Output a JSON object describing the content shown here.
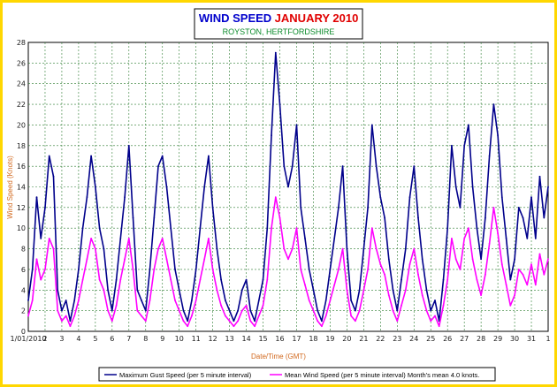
{
  "chart_data": {
    "type": "line",
    "title": "WIND SPEED",
    "title_date": "JANUARY 2010",
    "subtitle": "ROYSTON, HERTFORDSHIRE",
    "xlabel": "Date/Time (GMT)",
    "ylabel": "Wind Speed (Knots)",
    "ylim": [
      0,
      28
    ],
    "yticks": [
      0,
      2,
      4,
      6,
      8,
      10,
      12,
      14,
      16,
      18,
      20,
      22,
      24,
      26,
      28
    ],
    "xlim": [
      1,
      32
    ],
    "x_unit": "day of month (January 2010 → 1 February)",
    "xticks": [
      1,
      2,
      3,
      4,
      5,
      6,
      7,
      8,
      9,
      10,
      11,
      12,
      13,
      14,
      15,
      16,
      17,
      18,
      19,
      20,
      21,
      22,
      23,
      24,
      25,
      26,
      27,
      28,
      29,
      30,
      31,
      32
    ],
    "xtick_labels": [
      "1/01/2010",
      "2",
      "3",
      "4",
      "5",
      "6",
      "7",
      "8",
      "9",
      "10",
      "11",
      "12",
      "13",
      "14",
      "15",
      "16",
      "17",
      "18",
      "19",
      "20",
      "21",
      "22",
      "23",
      "24",
      "25",
      "26",
      "27",
      "28",
      "29",
      "30",
      "31",
      "1"
    ],
    "grid": true,
    "legend_position": "bottom",
    "series": [
      {
        "name": "Maximum Gust Speed (per 5 minute interval)",
        "color": "#00008b",
        "x": [
          1.0,
          1.25,
          1.5,
          1.75,
          2.0,
          2.25,
          2.5,
          2.75,
          3.0,
          3.25,
          3.5,
          3.75,
          4.0,
          4.25,
          4.5,
          4.75,
          5.0,
          5.25,
          5.5,
          5.75,
          6.0,
          6.25,
          6.5,
          6.75,
          7.0,
          7.25,
          7.5,
          7.75,
          8.0,
          8.25,
          8.5,
          8.75,
          9.0,
          9.25,
          9.5,
          9.75,
          10.0,
          10.25,
          10.5,
          10.75,
          11.0,
          11.25,
          11.5,
          11.75,
          12.0,
          12.25,
          12.5,
          12.75,
          13.0,
          13.25,
          13.5,
          13.75,
          14.0,
          14.25,
          14.5,
          14.75,
          15.0,
          15.25,
          15.5,
          15.75,
          16.0,
          16.25,
          16.5,
          16.75,
          17.0,
          17.25,
          17.5,
          17.75,
          18.0,
          18.25,
          18.5,
          18.75,
          19.0,
          19.25,
          19.5,
          19.75,
          20.0,
          20.25,
          20.5,
          20.75,
          21.0,
          21.25,
          21.5,
          21.75,
          22.0,
          22.25,
          22.5,
          22.75,
          23.0,
          23.25,
          23.5,
          23.75,
          24.0,
          24.25,
          24.5,
          24.75,
          25.0,
          25.25,
          25.5,
          25.75,
          26.0,
          26.25,
          26.5,
          26.75,
          27.0,
          27.25,
          27.5,
          27.75,
          28.0,
          28.25,
          28.5,
          28.75,
          29.0,
          29.25,
          29.5,
          29.75,
          30.0,
          30.25,
          30.5,
          30.75,
          31.0,
          31.25,
          31.5,
          31.75,
          32.0
        ],
        "values": [
          3,
          6,
          13,
          9,
          12,
          17,
          15,
          4,
          2,
          3,
          1,
          3,
          6,
          10,
          13,
          17,
          14,
          10,
          8,
          4,
          2,
          5,
          9,
          13,
          18,
          11,
          4,
          3,
          2,
          6,
          11,
          16,
          17,
          14,
          10,
          6,
          4,
          2,
          1,
          3,
          6,
          10,
          14,
          17,
          12,
          8,
          5,
          3,
          2,
          1,
          2,
          4,
          5,
          2,
          1,
          3,
          5,
          10,
          19,
          27,
          22,
          16,
          14,
          16,
          20,
          12,
          9,
          6,
          4,
          2,
          1,
          3,
          6,
          9,
          12,
          16,
          8,
          3,
          2,
          4,
          8,
          12,
          20,
          16,
          13,
          11,
          7,
          4,
          2,
          5,
          8,
          13,
          16,
          11,
          7,
          4,
          2,
          3,
          1,
          5,
          10,
          18,
          14,
          12,
          18,
          20,
          14,
          10,
          7,
          11,
          17,
          22,
          19,
          13,
          9,
          5,
          7,
          12,
          11,
          9,
          13,
          9,
          15,
          11,
          14
        ]
      },
      {
        "name": "Mean Wind Speed (per 5 minute interval)",
        "color": "#ff00ff",
        "x": [
          1.0,
          1.25,
          1.5,
          1.75,
          2.0,
          2.25,
          2.5,
          2.75,
          3.0,
          3.25,
          3.5,
          3.75,
          4.0,
          4.25,
          4.5,
          4.75,
          5.0,
          5.25,
          5.5,
          5.75,
          6.0,
          6.25,
          6.5,
          6.75,
          7.0,
          7.25,
          7.5,
          7.75,
          8.0,
          8.25,
          8.5,
          8.75,
          9.0,
          9.25,
          9.5,
          9.75,
          10.0,
          10.25,
          10.5,
          10.75,
          11.0,
          11.25,
          11.5,
          11.75,
          12.0,
          12.25,
          12.5,
          12.75,
          13.0,
          13.25,
          13.5,
          13.75,
          14.0,
          14.25,
          14.5,
          14.75,
          15.0,
          15.25,
          15.5,
          15.75,
          16.0,
          16.25,
          16.5,
          16.75,
          17.0,
          17.25,
          17.5,
          17.75,
          18.0,
          18.25,
          18.5,
          18.75,
          19.0,
          19.25,
          19.5,
          19.75,
          20.0,
          20.25,
          20.5,
          20.75,
          21.0,
          21.25,
          21.5,
          21.75,
          22.0,
          22.25,
          22.5,
          22.75,
          23.0,
          23.25,
          23.5,
          23.75,
          24.0,
          24.25,
          24.5,
          24.75,
          25.0,
          25.25,
          25.5,
          25.75,
          26.0,
          26.25,
          26.5,
          26.75,
          27.0,
          27.25,
          27.5,
          27.75,
          28.0,
          28.25,
          28.5,
          28.75,
          29.0,
          29.25,
          29.5,
          29.75,
          30.0,
          30.25,
          30.5,
          30.75,
          31.0,
          31.25,
          31.5,
          31.75,
          32.0
        ],
        "values": [
          1.5,
          3,
          7,
          5,
          6,
          9,
          8,
          2,
          1,
          1.5,
          0.5,
          1.5,
          3,
          5,
          7,
          9,
          8,
          5,
          4,
          2,
          1,
          2.5,
          5,
          7,
          9,
          6,
          2,
          1.5,
          1,
          3,
          6,
          8,
          9,
          7,
          5,
          3,
          2,
          1,
          0.5,
          1.5,
          3,
          5,
          7,
          9,
          6,
          4,
          2.5,
          1.5,
          1,
          0.5,
          1,
          2,
          2.5,
          1,
          0.5,
          1.5,
          2.5,
          5,
          10,
          13,
          11,
          8,
          7,
          8,
          10,
          6,
          4.5,
          3,
          2,
          1,
          0.5,
          1.5,
          3,
          4.5,
          6,
          8,
          4,
          1.5,
          1,
          2,
          4,
          6,
          10,
          8,
          6.5,
          5.5,
          3.5,
          2,
          1,
          2.5,
          4,
          6.5,
          8,
          5.5,
          3.5,
          2,
          1,
          1.5,
          0.5,
          2.5,
          5,
          9,
          7,
          6,
          9,
          10,
          7,
          5,
          3.5,
          5.5,
          8.5,
          12,
          9.5,
          6.5,
          4.5,
          2.5,
          3.5,
          6,
          5.5,
          4.5,
          6.5,
          4.5,
          7.5,
          5.5,
          7
        ]
      }
    ],
    "legend": [
      {
        "label": "Maximum Gust Speed (per 5 minute interval)",
        "color": "#00008b"
      },
      {
        "label": "Mean Wind Speed (per 5 minute interval) Month's mean 4.0 knots.",
        "color": "#ff00ff"
      }
    ]
  },
  "colors": {
    "frame": "#ffd700",
    "plot_background": "#ffffff",
    "grid": "#2e7d32",
    "title": "#0000cc",
    "title_date": "#e00000",
    "subtitle": "#0a8a2a",
    "axis_label": "#d2691e"
  }
}
